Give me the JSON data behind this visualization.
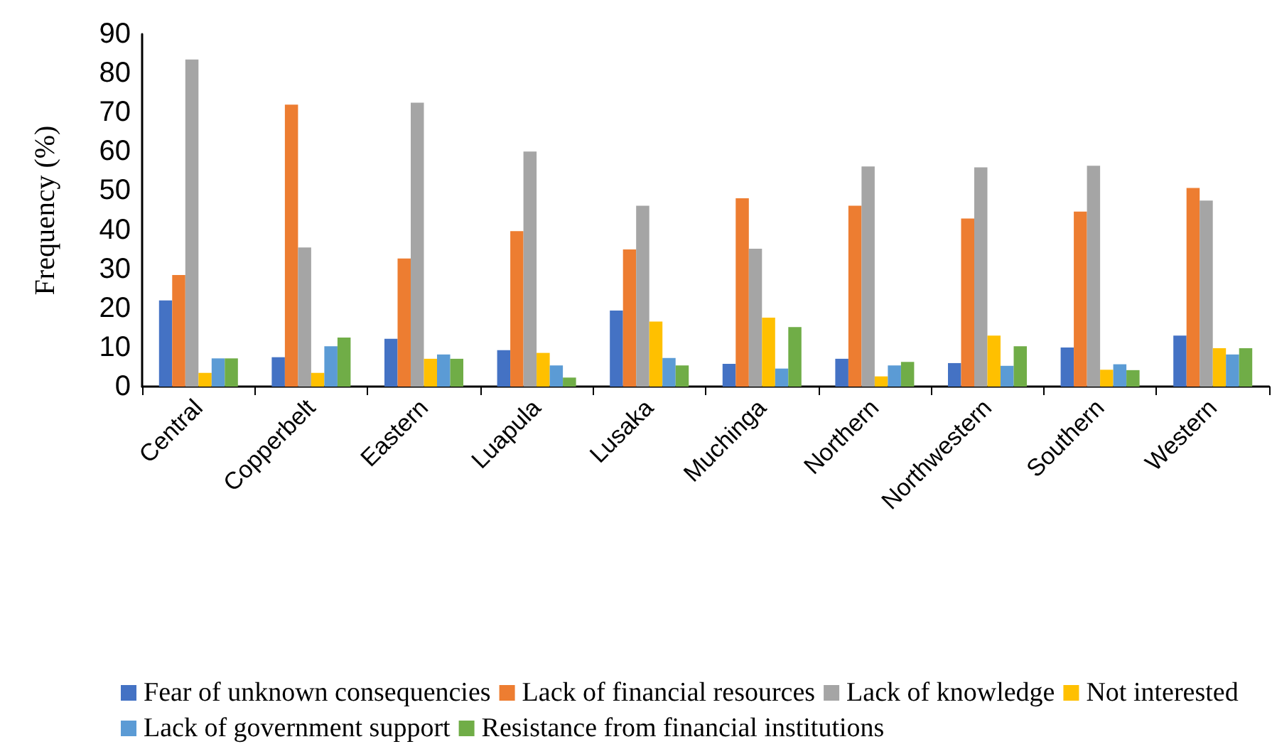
{
  "chart_data": {
    "type": "bar",
    "ylabel": "Frequency (%)",
    "categories": [
      "Central",
      "Copperbelt",
      "Eastern",
      "Luapula",
      "Lusaka",
      "Muchinga",
      "Northern",
      "Northwestern",
      "Southern",
      "Western"
    ],
    "series": [
      {
        "name": "Fear of unknown consequencies",
        "color": "#4472c4",
        "values": [
          22,
          7.5,
          12.2,
          9.3,
          19.4,
          5.8,
          7.1,
          6,
          10,
          13
        ]
      },
      {
        "name": "Lack of financial resources",
        "color": "#ed7d31",
        "values": [
          28.5,
          72,
          32.7,
          39.7,
          35,
          48.1,
          46.2,
          42.9,
          44.7,
          50.7
        ]
      },
      {
        "name": "Lack of knowledge",
        "color": "#a5a5a5",
        "values": [
          83.5,
          35.5,
          72.5,
          60,
          46.2,
          35.2,
          56.2,
          56,
          56.4,
          47.5
        ]
      },
      {
        "name": "Not interested",
        "color": "#ffc000",
        "values": [
          3.5,
          3.5,
          7.1,
          8.6,
          16.6,
          17.6,
          2.6,
          13,
          4.3,
          9.8
        ]
      },
      {
        "name": "Lack of government support",
        "color": "#5b9bd5",
        "values": [
          7.2,
          10.3,
          8.2,
          5.4,
          7.3,
          4.6,
          5.4,
          5.3,
          5.7,
          8.2
        ]
      },
      {
        "name": "Resistance from financial institutions",
        "color": "#70ad47",
        "values": [
          7.2,
          12.5,
          7.1,
          2.3,
          5.4,
          15.2,
          6.3,
          10.3,
          4.2,
          9.8
        ]
      }
    ],
    "ylim": [
      0,
      90
    ],
    "yticks": [
      0,
      10,
      20,
      30,
      40,
      50,
      60,
      70,
      80,
      90
    ],
    "grid": false,
    "legend": "bottom"
  }
}
